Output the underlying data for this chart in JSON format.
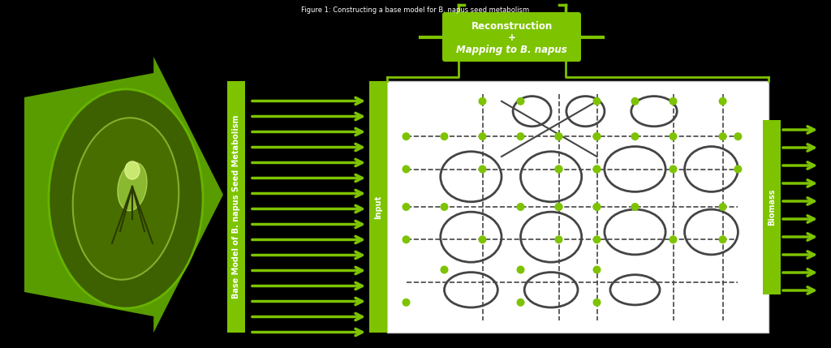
{
  "bg_color": "#000000",
  "green_color": "#7DC300",
  "green_dark": "#5a9900",
  "green_light": "#a8d840",
  "white": "#ffffff",
  "gray_dark": "#444444",
  "title_text": "Figure 1: Constructing a base model for B. napus seed metabolism",
  "recon_text_line1": "Reconstruction",
  "recon_text_line2": "+",
  "recon_text_line3": "Mapping to B. napus",
  "label_input": "Input",
  "label_biomass": "Biomass",
  "label_base_model": "Base Model of B. napus Seed Metabolism",
  "num_input_arrows": 16,
  "num_biomass_arrows": 10
}
